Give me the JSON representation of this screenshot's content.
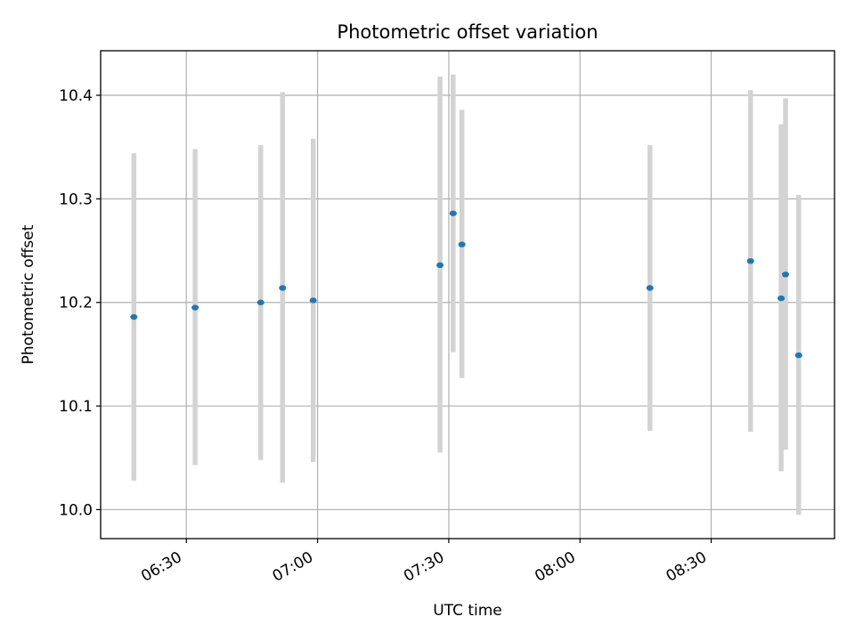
{
  "chart_data": {
    "type": "scatter",
    "title": "Photometric offset variation",
    "xlabel": "UTC time",
    "ylabel": "Photometric offset",
    "xlim": [
      "06:10:24",
      "08:58:12"
    ],
    "ylim": [
      9.972,
      10.443
    ],
    "grid": true,
    "x_ticks": [
      {
        "value": "06:30",
        "label": "06:30"
      },
      {
        "value": "07:00",
        "label": "07:00"
      },
      {
        "value": "07:30",
        "label": "07:30"
      },
      {
        "value": "08:00",
        "label": "08:00"
      },
      {
        "value": "08:30",
        "label": "08:30"
      }
    ],
    "y_ticks": [
      {
        "value": 10.0,
        "label": "10.0"
      },
      {
        "value": 10.1,
        "label": "10.1"
      },
      {
        "value": 10.2,
        "label": "10.2"
      },
      {
        "value": 10.3,
        "label": "10.3"
      },
      {
        "value": 10.4,
        "label": "10.4"
      }
    ],
    "marker_color": "#1f77b4",
    "errorbar_color": "#d3d3d3",
    "series": [
      {
        "x": [
          "06:18",
          "06:32",
          "06:47",
          "06:52",
          "06:59",
          "07:28",
          "07:31",
          "07:33",
          "08:16",
          "08:39",
          "08:46",
          "08:47",
          "08:50"
        ],
        "y": [
          10.186,
          10.195,
          10.2,
          10.214,
          10.202,
          10.236,
          10.286,
          10.256,
          10.214,
          10.24,
          10.204,
          10.227,
          10.149
        ],
        "yerr_low": [
          10.028,
          10.043,
          10.048,
          10.026,
          10.046,
          10.055,
          10.152,
          10.127,
          10.076,
          10.075,
          10.037,
          10.058,
          9.995
        ],
        "yerr_high": [
          10.344,
          10.348,
          10.352,
          10.403,
          10.358,
          10.418,
          10.42,
          10.386,
          10.352,
          10.405,
          10.372,
          10.397,
          10.304
        ]
      }
    ]
  }
}
